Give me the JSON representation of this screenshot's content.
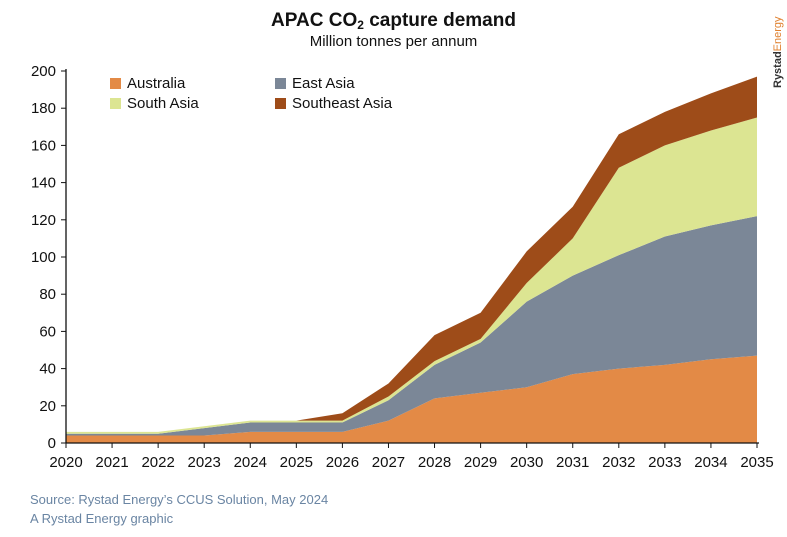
{
  "title_main": "APAC CO",
  "title_sub": "2",
  "title_rest": " capture demand",
  "subtitle": "Million tonnes per annum",
  "brand": "Rystad Energy",
  "footer": {
    "source": "Source: Rystad Energy’s CCUS Solution, May 2024",
    "credit": "A Rystad Energy graphic"
  },
  "chart_data": {
    "type": "area",
    "stacked": true,
    "title": "APAC CO2 capture demand",
    "subtitle": "Million tonnes per annum",
    "x": [
      2020,
      2021,
      2022,
      2023,
      2024,
      2025,
      2026,
      2027,
      2028,
      2029,
      2030,
      2031,
      2032,
      2033,
      2034,
      2035
    ],
    "ylim": [
      0,
      200
    ],
    "yticks": [
      0,
      20,
      40,
      60,
      80,
      100,
      120,
      140,
      160,
      180,
      200
    ],
    "grid": false,
    "legend_position": "top-left",
    "series": [
      {
        "name": "Australia",
        "color": "#e38a46",
        "values": [
          4,
          4,
          4,
          4,
          6,
          6,
          6,
          12,
          24,
          27,
          30,
          37,
          40,
          42,
          45,
          47
        ]
      },
      {
        "name": "East Asia",
        "color": "#7b8797",
        "values": [
          1,
          1,
          1,
          4,
          5,
          5,
          5,
          11,
          18,
          27,
          46,
          53,
          61,
          69,
          72,
          75
        ]
      },
      {
        "name": "South Asia",
        "color": "#dce592",
        "values": [
          1,
          1,
          1,
          1,
          1,
          1,
          1,
          2,
          2,
          2,
          10,
          20,
          47,
          49,
          51,
          53
        ]
      },
      {
        "name": "Southeast Asia",
        "color": "#9e4c19",
        "values": [
          0,
          0,
          0,
          0,
          0,
          0,
          4,
          7,
          14,
          14,
          17,
          17,
          18,
          18,
          20,
          22
        ]
      }
    ]
  }
}
